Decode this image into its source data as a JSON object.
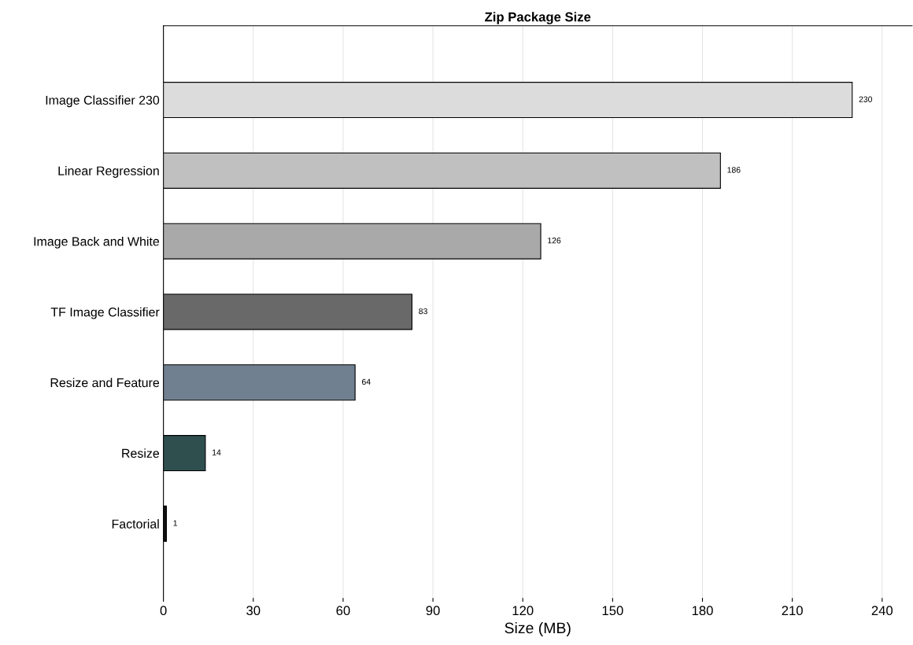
{
  "chart_data": {
    "type": "bar",
    "orientation": "horizontal",
    "title": "Zip Package Size",
    "xlabel": "Size (MB)",
    "categories": [
      "Image Classifier 230",
      "Linear Regression",
      "Image Back and White",
      "TF Image Classifier",
      "Resize and Feature",
      "Resize",
      "Factorial"
    ],
    "values": [
      230,
      186,
      126,
      83,
      64,
      14,
      1
    ],
    "colors": [
      "#dcdcdc",
      "#c0c0c0",
      "#a9a9a9",
      "#696969",
      "#708090",
      "#2f4f4f",
      "#111111"
    ],
    "xlim": [
      0,
      250
    ],
    "xticks": [
      0,
      30,
      60,
      90,
      120,
      150,
      180,
      210,
      240
    ],
    "grid": "x",
    "data_labels": true
  }
}
